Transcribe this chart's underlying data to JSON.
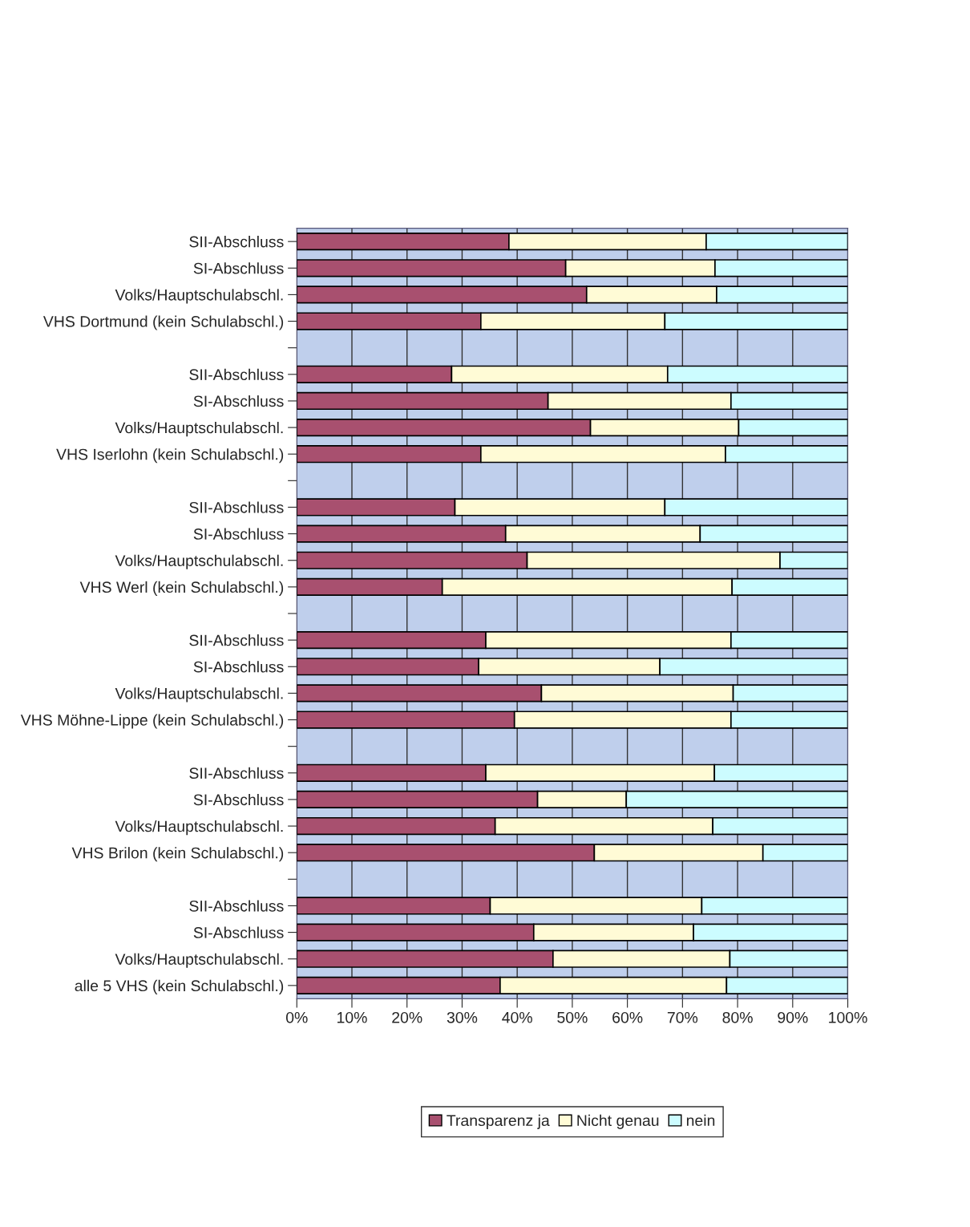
{
  "chart_data": {
    "type": "bar",
    "orientation": "horizontal",
    "stacked": true,
    "grid": "x",
    "legend": "bottom",
    "categories": [
      "SII-Abschluss",
      "SI-Abschluss",
      "Volks/Hauptschulabschl.",
      "VHS Dortmund (kein Schulabschl.)",
      null,
      "SII-Abschluss",
      "SI-Abschluss",
      "Volks/Hauptschulabschl.",
      "VHS Iserlohn (kein Schulabschl.)",
      null,
      "SII-Abschluss",
      "SI-Abschluss",
      "Volks/Hauptschulabschl.",
      "VHS Werl (kein Schulabschl.)",
      null,
      "SII-Abschluss",
      "SI-Abschluss",
      "Volks/Hauptschulabschl.",
      "VHS Möhne-Lippe (kein Schulabschl.)",
      null,
      "SII-Abschluss",
      "SI-Abschluss",
      "Volks/Hauptschulabschl.",
      "VHS Brilon (kein Schulabschl.)",
      null,
      "SII-Abschluss",
      "SI-Abschluss",
      "Volks/Hauptschulabschl.",
      "alle 5 VHS (kein Schulabschl.)"
    ],
    "series": [
      {
        "name": "Transparenz ja",
        "color": "#a8506f",
        "values": [
          38.5,
          48.8,
          52.6,
          33.4,
          null,
          28.1,
          45.6,
          53.3,
          33.4,
          null,
          28.7,
          37.9,
          41.8,
          26.4,
          null,
          34.3,
          33.0,
          44.4,
          39.5,
          null,
          34.3,
          43.7,
          36.0,
          54.0,
          null,
          35.1,
          43.0,
          46.5,
          36.9
        ]
      },
      {
        "name": "Nicht genau",
        "color": "#fffbd6",
        "values": [
          35.8,
          27.1,
          23.6,
          33.4,
          null,
          39.2,
          33.2,
          26.9,
          44.4,
          null,
          38.1,
          35.3,
          45.9,
          52.6,
          null,
          44.5,
          32.9,
          34.8,
          39.3,
          null,
          41.5,
          16.1,
          39.5,
          30.6,
          null,
          38.4,
          29.0,
          32.1,
          41.1
        ]
      },
      {
        "name": "nein",
        "color": "#ccfcff",
        "values": [
          25.7,
          24.1,
          23.8,
          33.2,
          null,
          32.7,
          21.2,
          19.8,
          22.2,
          null,
          33.2,
          26.8,
          12.3,
          21.0,
          null,
          21.2,
          34.1,
          20.8,
          21.2,
          null,
          24.2,
          40.2,
          24.5,
          15.4,
          null,
          26.5,
          28.0,
          21.4,
          22.0
        ]
      }
    ],
    "xlim": [
      0,
      100
    ],
    "xticks": [
      {
        "value": 0,
        "label": "0%"
      },
      {
        "value": 10,
        "label": "10%"
      },
      {
        "value": 20,
        "label": "20%"
      },
      {
        "value": 30,
        "label": "30%"
      },
      {
        "value": 40,
        "label": "40%"
      },
      {
        "value": 50,
        "label": "50%"
      },
      {
        "value": 60,
        "label": "60%"
      },
      {
        "value": 70,
        "label": "70%"
      },
      {
        "value": 80,
        "label": "80%"
      },
      {
        "value": 90,
        "label": "90%"
      },
      {
        "value": 100,
        "label": "100%"
      }
    ]
  }
}
